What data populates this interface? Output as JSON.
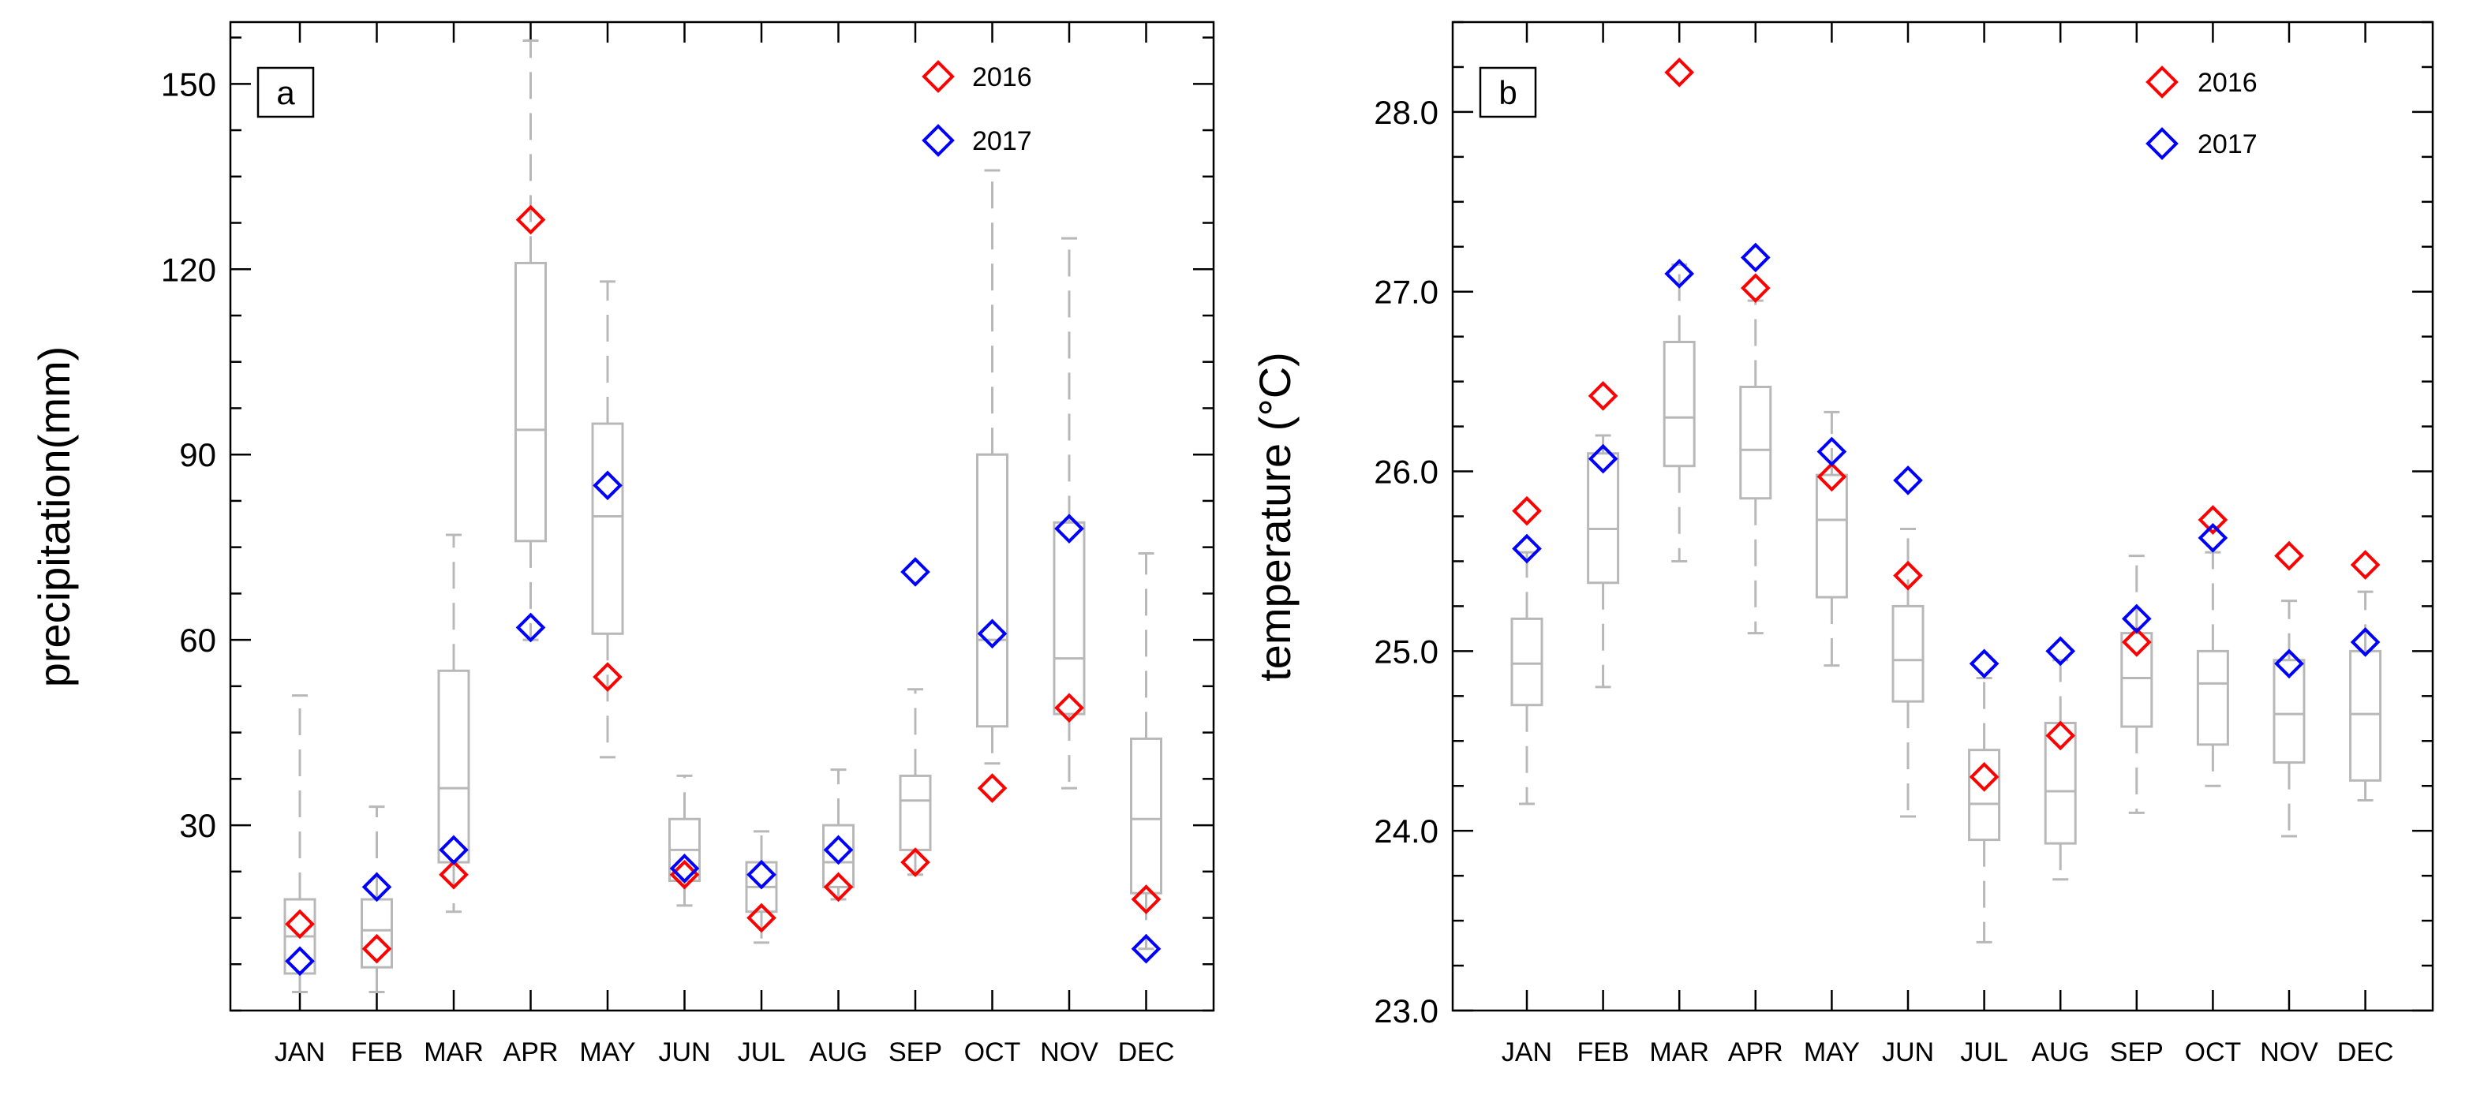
{
  "chart_data": [
    {
      "type": "box",
      "panel_label": "a",
      "ylabel": "precipitation(mm)",
      "xlabel": "",
      "ylim": [
        0,
        160
      ],
      "yticks": [
        30,
        60,
        90,
        120,
        150
      ],
      "ytick_labels": [
        "30",
        "60",
        "90",
        "120",
        "150"
      ],
      "categories": [
        "JAN",
        "FEB",
        "MAR",
        "APR",
        "MAY",
        "JUN",
        "JUL",
        "AUG",
        "SEP",
        "OCT",
        "NOV",
        "DEC"
      ],
      "boxes": [
        {
          "min": 3,
          "q1": 6,
          "median": 12,
          "q3": 18,
          "max": 51
        },
        {
          "min": 3,
          "q1": 7,
          "median": 13,
          "q3": 18,
          "max": 33
        },
        {
          "min": 16,
          "q1": 24,
          "median": 36,
          "q3": 55,
          "max": 77
        },
        {
          "min": 60,
          "q1": 76,
          "median": 94,
          "q3": 121,
          "max": 157
        },
        {
          "min": 41,
          "q1": 61,
          "median": 80,
          "q3": 95,
          "max": 118
        },
        {
          "min": 17,
          "q1": 21,
          "median": 26,
          "q3": 31,
          "max": 38
        },
        {
          "min": 11,
          "q1": 16,
          "median": 20,
          "q3": 24,
          "max": 29
        },
        {
          "min": 18,
          "q1": 20,
          "median": 24,
          "q3": 30,
          "max": 39
        },
        {
          "min": 22,
          "q1": 26,
          "median": 34,
          "q3": 38,
          "max": 52
        },
        {
          "min": 40,
          "q1": 46,
          "median": 60,
          "q3": 90,
          "max": 136
        },
        {
          "min": 36,
          "q1": 48,
          "median": 57,
          "q3": 79,
          "max": 125
        },
        {
          "min": 10,
          "q1": 19,
          "median": 31,
          "q3": 44,
          "max": 74
        }
      ],
      "series": [
        {
          "name": "2016",
          "color": "#ff0000",
          "values": [
            14,
            10,
            22,
            128,
            54,
            22,
            15,
            20,
            24,
            36,
            49,
            18
          ]
        },
        {
          "name": "2017",
          "color": "#0000ff",
          "values": [
            8,
            20,
            26,
            62,
            85,
            23,
            22,
            26,
            71,
            61,
            78,
            10
          ]
        }
      ],
      "legend_position": "top-right"
    },
    {
      "type": "box",
      "panel_label": "b",
      "ylabel": "temperature (°C)",
      "xlabel": "",
      "ylim": [
        23.0,
        28.5
      ],
      "yticks": [
        23.0,
        24.0,
        25.0,
        26.0,
        27.0,
        28.0
      ],
      "ytick_labels": [
        "23.0",
        "24.0",
        "25.0",
        "26.0",
        "27.0",
        "28.0"
      ],
      "categories": [
        "JAN",
        "FEB",
        "MAR",
        "APR",
        "MAY",
        "JUN",
        "JUL",
        "AUG",
        "SEP",
        "OCT",
        "NOV",
        "DEC"
      ],
      "boxes": [
        {
          "min": 24.15,
          "q1": 24.7,
          "median": 24.93,
          "q3": 25.18,
          "max": 25.55
        },
        {
          "min": 24.8,
          "q1": 25.38,
          "median": 25.68,
          "q3": 26.1,
          "max": 26.2
        },
        {
          "min": 25.5,
          "q1": 26.03,
          "median": 26.3,
          "q3": 26.72,
          "max": 27.15
        },
        {
          "min": 25.1,
          "q1": 25.85,
          "median": 26.12,
          "q3": 26.47,
          "max": 26.95
        },
        {
          "min": 24.92,
          "q1": 25.3,
          "median": 25.73,
          "q3": 25.98,
          "max": 26.33
        },
        {
          "min": 24.08,
          "q1": 24.72,
          "median": 24.95,
          "q3": 25.25,
          "max": 25.68
        },
        {
          "min": 23.38,
          "q1": 23.95,
          "median": 24.15,
          "q3": 24.45,
          "max": 24.85
        },
        {
          "min": 23.73,
          "q1": 23.93,
          "median": 24.22,
          "q3": 24.6,
          "max": 24.95
        },
        {
          "min": 24.1,
          "q1": 24.58,
          "median": 24.85,
          "q3": 25.1,
          "max": 25.53
        },
        {
          "min": 24.25,
          "q1": 24.48,
          "median": 24.82,
          "q3": 25.0,
          "max": 25.55
        },
        {
          "min": 23.97,
          "q1": 24.38,
          "median": 24.65,
          "q3": 24.95,
          "max": 25.28
        },
        {
          "min": 24.17,
          "q1": 24.28,
          "median": 24.65,
          "q3": 25.0,
          "max": 25.33
        }
      ],
      "series": [
        {
          "name": "2016",
          "color": "#ff0000",
          "values": [
            25.78,
            26.42,
            28.22,
            27.02,
            25.97,
            25.42,
            24.3,
            24.53,
            25.05,
            25.73,
            25.53,
            25.48
          ]
        },
        {
          "name": "2017",
          "color": "#0000ff",
          "values": [
            25.57,
            26.07,
            27.1,
            27.19,
            26.11,
            25.95,
            24.93,
            25.0,
            25.18,
            25.63,
            24.93,
            25.05
          ]
        }
      ],
      "legend_position": "top-right"
    }
  ]
}
